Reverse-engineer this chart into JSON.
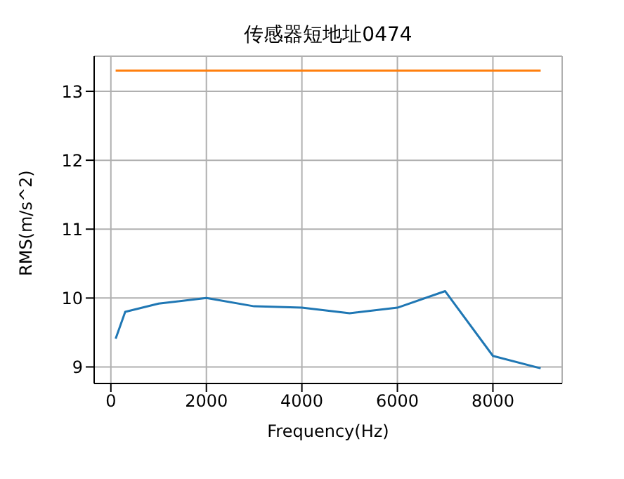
{
  "chart_data": {
    "type": "line",
    "title": "传感器短地址0474",
    "xlabel": "Frequency(Hz)",
    "ylabel": "RMS(m/s^2)",
    "series": [
      {
        "color": "#1f77b4",
        "x": [
          100,
          300,
          1000,
          2000,
          3000,
          4000,
          5000,
          6000,
          7000,
          8000,
          9000
        ],
        "values": [
          9.41,
          9.8,
          9.92,
          10.0,
          9.88,
          9.86,
          9.78,
          9.86,
          10.1,
          9.16,
          8.98
        ]
      },
      {
        "color": "#ff7f0e",
        "x": [
          100,
          9000
        ],
        "values": [
          13.3,
          13.3
        ]
      }
    ],
    "xlim": [
      -350,
      9450
    ],
    "ylim": [
      8.76,
      13.51
    ],
    "xticks": [
      0,
      2000,
      4000,
      6000,
      8000
    ],
    "yticks": [
      9,
      10,
      11,
      12,
      13
    ],
    "grid": true,
    "marker": "none"
  }
}
